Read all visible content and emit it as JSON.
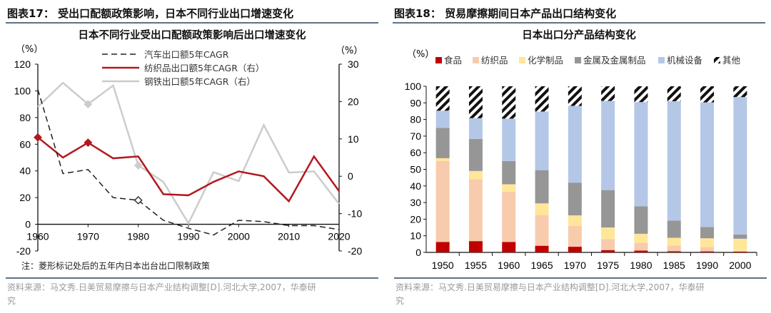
{
  "left": {
    "header": "图表17： 受出口配额政策影响，日本不同行业出口增速变化",
    "title": "日本不同行业受出口配额政策影响后出口增速变化",
    "note": "注：菱形标记处后的五年内日本出台出口限制政策",
    "source_line1": "资料来源：马文秀.日美贸易摩擦与日本产业结构调整[D].河北大学,2007，华泰研",
    "source_line2": "究"
  },
  "right": {
    "header": "图表18： 贸易摩擦期间日本产品出口结构变化",
    "title": "日本出口分产品结构变化",
    "source_line1": "资料来源：马文秀.日美贸易摩擦与日本产业结构调整[D].河北大学,2007，华泰研",
    "source_line2": "究"
  },
  "chart_data": [
    {
      "type": "line",
      "title": "日本不同行业受出口配额政策影响后出口增速变化",
      "ylabel_left": "（%）",
      "ylabel_right": "（%）",
      "ylim_left": [
        -20,
        120
      ],
      "yticks_left": [
        -20,
        0,
        20,
        40,
        60,
        80,
        100,
        120
      ],
      "ylim_right": [
        -20,
        30
      ],
      "yticks_right": [
        -20,
        -10,
        0,
        10,
        20,
        30
      ],
      "x": [
        1960,
        1965,
        1970,
        1975,
        1980,
        1985,
        1990,
        1995,
        2000,
        2005,
        2010,
        2015,
        2020
      ],
      "xticks": [
        1960,
        1970,
        1980,
        1990,
        2000,
        2010,
        2020
      ],
      "legend": "top-center",
      "series": [
        {
          "name": "汽车出口额5年CAGR",
          "axis": "left",
          "color": "#222222",
          "style": "dashed",
          "values": [
            101,
            38,
            41,
            20,
            18,
            3,
            -3,
            -8,
            3,
            2,
            -1,
            -1,
            -4
          ],
          "markers": [
            1980
          ]
        },
        {
          "name": "纺织品出口额5年CAGR（右）",
          "axis": "right",
          "color": "#b3181f",
          "style": "solid",
          "values": [
            10.4,
            5,
            9,
            4.8,
            5.3,
            -4.8,
            -5.1,
            -1.5,
            1.3,
            0,
            -6.7,
            5.3,
            -4
          ],
          "markers": [
            1960,
            1970
          ]
        },
        {
          "name": "钢铁出口额5年CAGR（右）",
          "axis": "right",
          "color": "#cccccc",
          "style": "solid",
          "values": [
            18.6,
            25,
            19.3,
            24.3,
            2.9,
            -1.5,
            -12.6,
            1.1,
            -1.3,
            13.7,
            1,
            1.3,
            -7.4
          ],
          "markers": [
            1970,
            1980
          ]
        }
      ]
    },
    {
      "type": "bar",
      "stacked": true,
      "title": "日本出口分产品结构变化",
      "ylabel": "（%）",
      "ylim": [
        0,
        100
      ],
      "yticks": [
        0,
        10,
        20,
        30,
        40,
        50,
        60,
        70,
        80,
        90,
        100
      ],
      "categories": [
        "1950",
        "1955",
        "1960",
        "1965",
        "1970",
        "1975",
        "1980",
        "1985",
        "1990",
        "2000"
      ],
      "legend": "top",
      "series": [
        {
          "name": "食品",
          "color": "#c00000",
          "values": [
            6.3,
            6.8,
            6.3,
            4,
            3.4,
            1.4,
            1.1,
            0.7,
            0.6,
            0.5
          ]
        },
        {
          "name": "纺织品",
          "color": "#f8cbad",
          "values": [
            48.7,
            37.2,
            30.2,
            18.5,
            12.6,
            6.6,
            4.6,
            3.5,
            2.6,
            0.4
          ]
        },
        {
          "name": "化学制品",
          "color": "#ffe699",
          "values": [
            1.7,
            5,
            4.5,
            7,
            6.3,
            7,
            5.5,
            4.6,
            5.3,
            7.3
          ]
        },
        {
          "name": "金属及金属制品",
          "color": "#969696",
          "values": [
            18.3,
            19.3,
            14,
            20,
            19.7,
            22.5,
            16.5,
            10.4,
            6.8,
            2.6
          ]
        },
        {
          "name": "机械设备",
          "color": "#b4c7e7",
          "values": [
            10.3,
            12.5,
            25.5,
            35.3,
            46.2,
            53.7,
            62.8,
            71.8,
            75,
            82.7
          ]
        },
        {
          "name": "其他",
          "color": "hatched-black",
          "values": [
            14.7,
            19.2,
            19.5,
            15.2,
            11.8,
            8.8,
            9.5,
            9,
            9.7,
            6.5
          ]
        }
      ]
    }
  ]
}
